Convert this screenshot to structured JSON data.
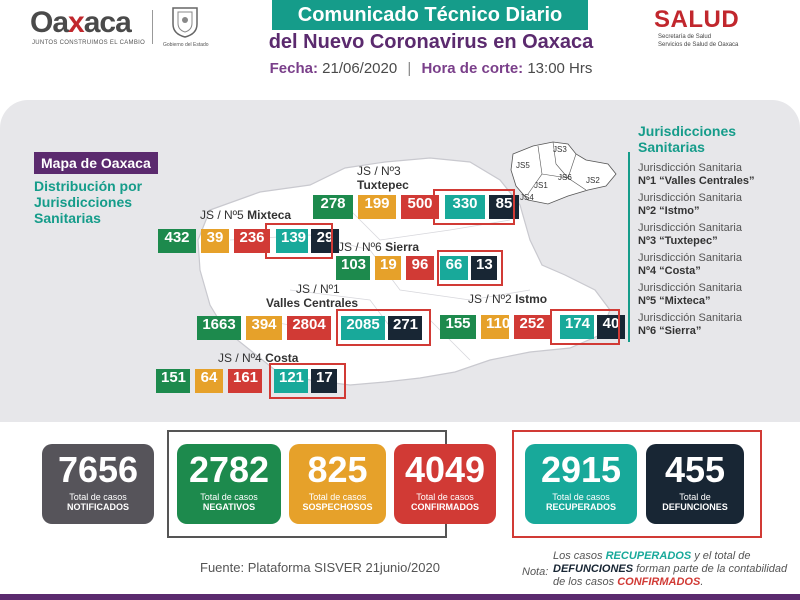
{
  "header": {
    "logo_name_a": "Oa",
    "logo_name_x": "x",
    "logo_name_b": "aca",
    "logo_tagline": "JUNTOS CONSTRUIMOS EL CAMBIO",
    "seal_caption": "Gobierno del Estado",
    "title_line1": "Comunicado Técnico Diario",
    "title_line2": "del Nuevo Coronavirus en Oaxaca",
    "fecha_label": "Fecha:",
    "fecha_value": "21/06/2020",
    "hora_label": "Hora de corte:",
    "hora_value": "13:00 Hrs",
    "salud": "SALUD",
    "salud_sub1": "Secretaría de Salud",
    "salud_sub2": "Servicios de Salud de Oaxaca"
  },
  "map": {
    "label": "Mapa de Oaxaca",
    "subtitle": "Distribución por Jurisdicciones Sanitarias",
    "regions": [
      {
        "name_a": "JS / Nº3",
        "name_b": "Tuxtepec",
        "values": [
          "278",
          "199",
          "500",
          "330",
          "85"
        ]
      },
      {
        "name_a": "JS / Nº5",
        "name_b": "Mixteca",
        "values": [
          "432",
          "39",
          "236",
          "139",
          "29"
        ]
      },
      {
        "name_a": "JS / Nº6",
        "name_b": "Sierra",
        "values": [
          "103",
          "19",
          "96",
          "66",
          "13"
        ]
      },
      {
        "name_a": "JS / Nº1",
        "name_b": "Valles Centrales",
        "values": [
          "1663",
          "394",
          "2804",
          "2085",
          "271"
        ]
      },
      {
        "name_a": "JS / Nº2",
        "name_b": "Istmo",
        "values": [
          "155",
          "110",
          "252",
          "174",
          "40"
        ]
      },
      {
        "name_a": "JS / Nº4",
        "name_b": "Costa",
        "values": [
          "151",
          "64",
          "161",
          "121",
          "17"
        ]
      }
    ],
    "inset_labels": [
      "JS5",
      "JS3",
      "JS1",
      "JS6",
      "JS2",
      "JS4"
    ]
  },
  "jurisdicciones": {
    "title_a": "Jurisdicciones",
    "title_b": "Sanitarias",
    "items": [
      {
        "line1": "Jurisdicción Sanitaria",
        "line2": "Nº1 “Valles Centrales”"
      },
      {
        "line1": "Jurisdicción Sanitaria",
        "line2": "Nº2 “Istmo”"
      },
      {
        "line1": "Jurisdicción Sanitaria",
        "line2": "Nº3 “Tuxtepec”"
      },
      {
        "line1": "Jurisdicción Sanitaria",
        "line2": "Nº4 “Costa”"
      },
      {
        "line1": "Jurisdicción Sanitaria",
        "line2": "Nº5 “Mixteca”"
      },
      {
        "line1": "Jurisdicción Sanitaria",
        "line2": "Nº6 “Sierra”"
      }
    ]
  },
  "totals": [
    {
      "value": "7656",
      "label": "Total de casos",
      "kind": "NOTIFICADOS",
      "color": "#56545a"
    },
    {
      "value": "2782",
      "label": "Total de casos",
      "kind": "NEGATIVOS",
      "color": "#1d8a4d"
    },
    {
      "value": "825",
      "label": "Total de casos",
      "kind": "SOSPECHOSOS",
      "color": "#e6a12a"
    },
    {
      "value": "4049",
      "label": "Total de casos",
      "kind": "CONFIRMADOS",
      "color": "#d13a35"
    },
    {
      "value": "2915",
      "label": "Total de casos",
      "kind": "RECUPERADOS",
      "color": "#18a99a"
    },
    {
      "value": "455",
      "label": "Total de",
      "kind": "DEFUNCIONES",
      "color": "#182634"
    }
  ],
  "footer": {
    "fuente": "Fuente: Plataforma SISVER 21junio/2020",
    "nota_label": "Nota:",
    "nota_p1": "Los casos ",
    "nota_recuperados": "RECUPERADOS",
    "nota_p2": " y el total de ",
    "nota_defunciones": "DEFUNCIONES",
    "nota_p3": " forman parte de la contabilidad de los casos ",
    "nota_confirmados": "CONFIRMADOS",
    "nota_p4": "."
  }
}
